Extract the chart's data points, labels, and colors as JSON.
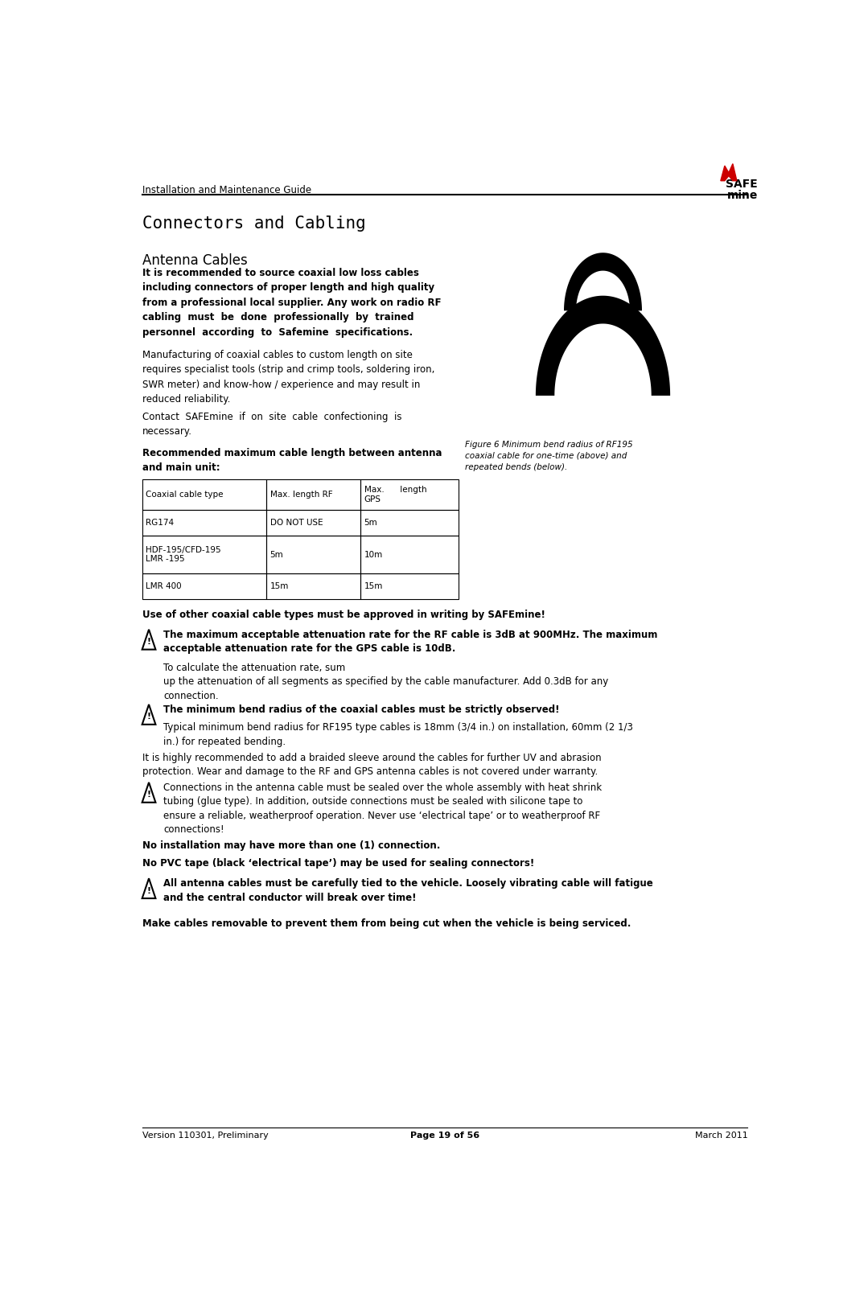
{
  "page_width": 10.79,
  "page_height": 16.14,
  "bg_color": "#ffffff",
  "header_text": "Installation and Maintenance Guide",
  "logo_safe_color": "#cc0000",
  "footer_left": "Version 110301, Preliminary",
  "footer_center": "Page 19 of 56",
  "footer_right": "March 2011",
  "section_title": "Connectors and Cabling",
  "subsection_title": "Antenna Cables",
  "para1_bold": "It is recommended to source coaxial low loss cables\nincluding connectors of proper length and high quality\nfrom a professional local supplier. Any work on radio RF\ncabling  must  be  done  professionally  by  trained\npersonnel  according  to  Safemine  specifications.",
  "para1_normal": "Manufacturing of coaxial cables to custom length on site\nrequires specialist tools (strip and crimp tools, soldering iron,\nSWR meter) and know-how / experience and may result in\nreduced reliability.",
  "para2": "Contact  SAFEmine  if  on  site  cable  confectioning  is\nnecessary.",
  "para3_bold": "Recommended maximum cable length between antenna\nand main unit:",
  "table_headers": [
    "Coaxial cable type",
    "Max. length RF",
    "Max.      length\nGPS"
  ],
  "table_rows": [
    [
      "RG174",
      "DO NOT USE",
      "5m"
    ],
    [
      "HDF-195/CFD-195\nLMR -195",
      "5m",
      "10m"
    ],
    [
      "LMR 400",
      "15m",
      "15m"
    ]
  ],
  "use_warning": "Use of other coaxial cable types must be approved in writing by SAFEmine!",
  "warn1_bold": "The maximum acceptable attenuation rate for the RF cable is 3dB at 900MHz. The maximum\nacceptable attenuation rate for the GPS cable is 10dB.",
  "warn1_normal": "To calculate the attenuation rate, sum\nup the attenuation of all segments as specified by the cable manufacturer. Add 0.3dB for any\nconnection.",
  "warn2_bold": "The minimum bend radius of the coaxial cables must be strictly observed!",
  "warn2_normal": "Typical minimum bend radius for RF195 type cables is 18mm (3/4 in.) on installation, 60mm (2 1/3\nin.) for repeated bending.",
  "para_it": "It is highly recommended to add a braided sleeve around the cables for further UV and abrasion\nprotection. Wear and damage to the RF and GPS antenna cables is not covered under warranty.",
  "para_conn": "Connections in the antenna cable must be sealed over the whole assembly with heat shrink\ntubing (glue type). In addition, outside connections must be sealed with silicone tape to\nensure a reliable, weatherproof operation. Never use ‘electrical tape’ or to weatherproof RF\nconnections!",
  "warn3": "No installation may have more than one (1) connection.",
  "warn4": "No PVC tape (black ‘electrical tape’) may be used for sealing connectors!",
  "warn5_bold": "All antenna cables must be carefully tied to the vehicle. Loosely vibrating cable will fatigue\nand the central conductor will break over time!",
  "final_bold": "Make cables removable to prevent them from being cut when the vehicle is being serviced.",
  "fig_caption": "Figure 6 Minimum bend radius of RF195\ncoaxial cable for one-time (above) and\nrepeated bends (below)."
}
